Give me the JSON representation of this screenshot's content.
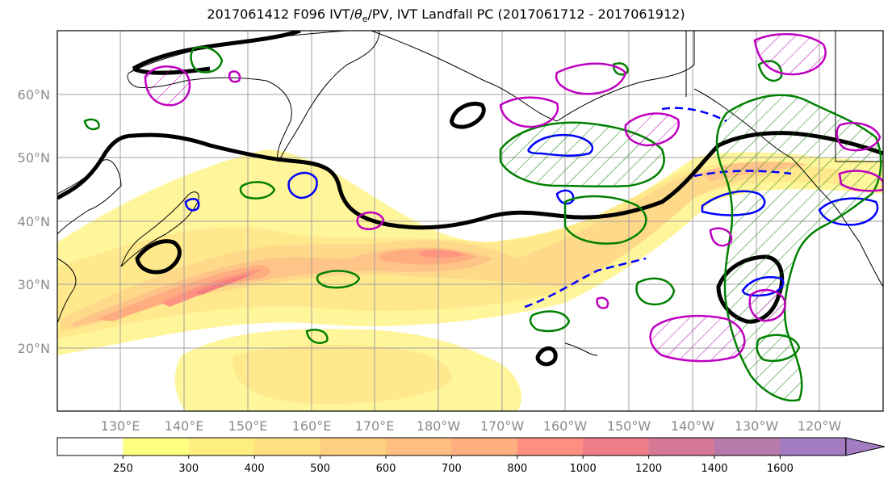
{
  "title": "2017061412 F096 IVT/θe/PV, IVT Landfall PC (2017061712 - 2017061912)",
  "title_parts": {
    "prefix": "2017061412 F096 IVT/",
    "theta": "θ",
    "sub": "e",
    "suffix": "/PV, IVT Landfall PC (2017061712 - 2017061912)"
  },
  "lat_labels": [
    "60°N",
    "50°N",
    "40°N",
    "30°N",
    "20°N"
  ],
  "lon_labels": [
    "130°E",
    "140°E",
    "150°E",
    "160°E",
    "170°E",
    "180°W",
    "170°W",
    "160°W",
    "150°W",
    "140°W",
    "130°W",
    "120°W"
  ],
  "colorbar": {
    "levels": [
      "250",
      "300",
      "400",
      "500",
      "600",
      "700",
      "800",
      "1000",
      "1200",
      "1400",
      "1600"
    ],
    "colors": [
      "#ffffff",
      "#ffff80",
      "#ffef80",
      "#ffdf80",
      "#ffcf80",
      "#ffbf80",
      "#ffaf80",
      "#ff8f80",
      "#ee7f88",
      "#d57896",
      "#b87aaa",
      "#a47cc2"
    ]
  },
  "ivt_fill_colors": {
    "c250": "#fff59a",
    "c300": "#ffe98c",
    "c400": "#ffd98a",
    "c500": "#ffc488",
    "c600": "#ffad80",
    "c700": "#ff9480",
    "c800": "#f57f7f"
  },
  "contour_colors": {
    "theta_e": "#000000",
    "pv": "#0000ff",
    "landfall_positive": "#008000",
    "landfall_negative": "#c000c0"
  }
}
